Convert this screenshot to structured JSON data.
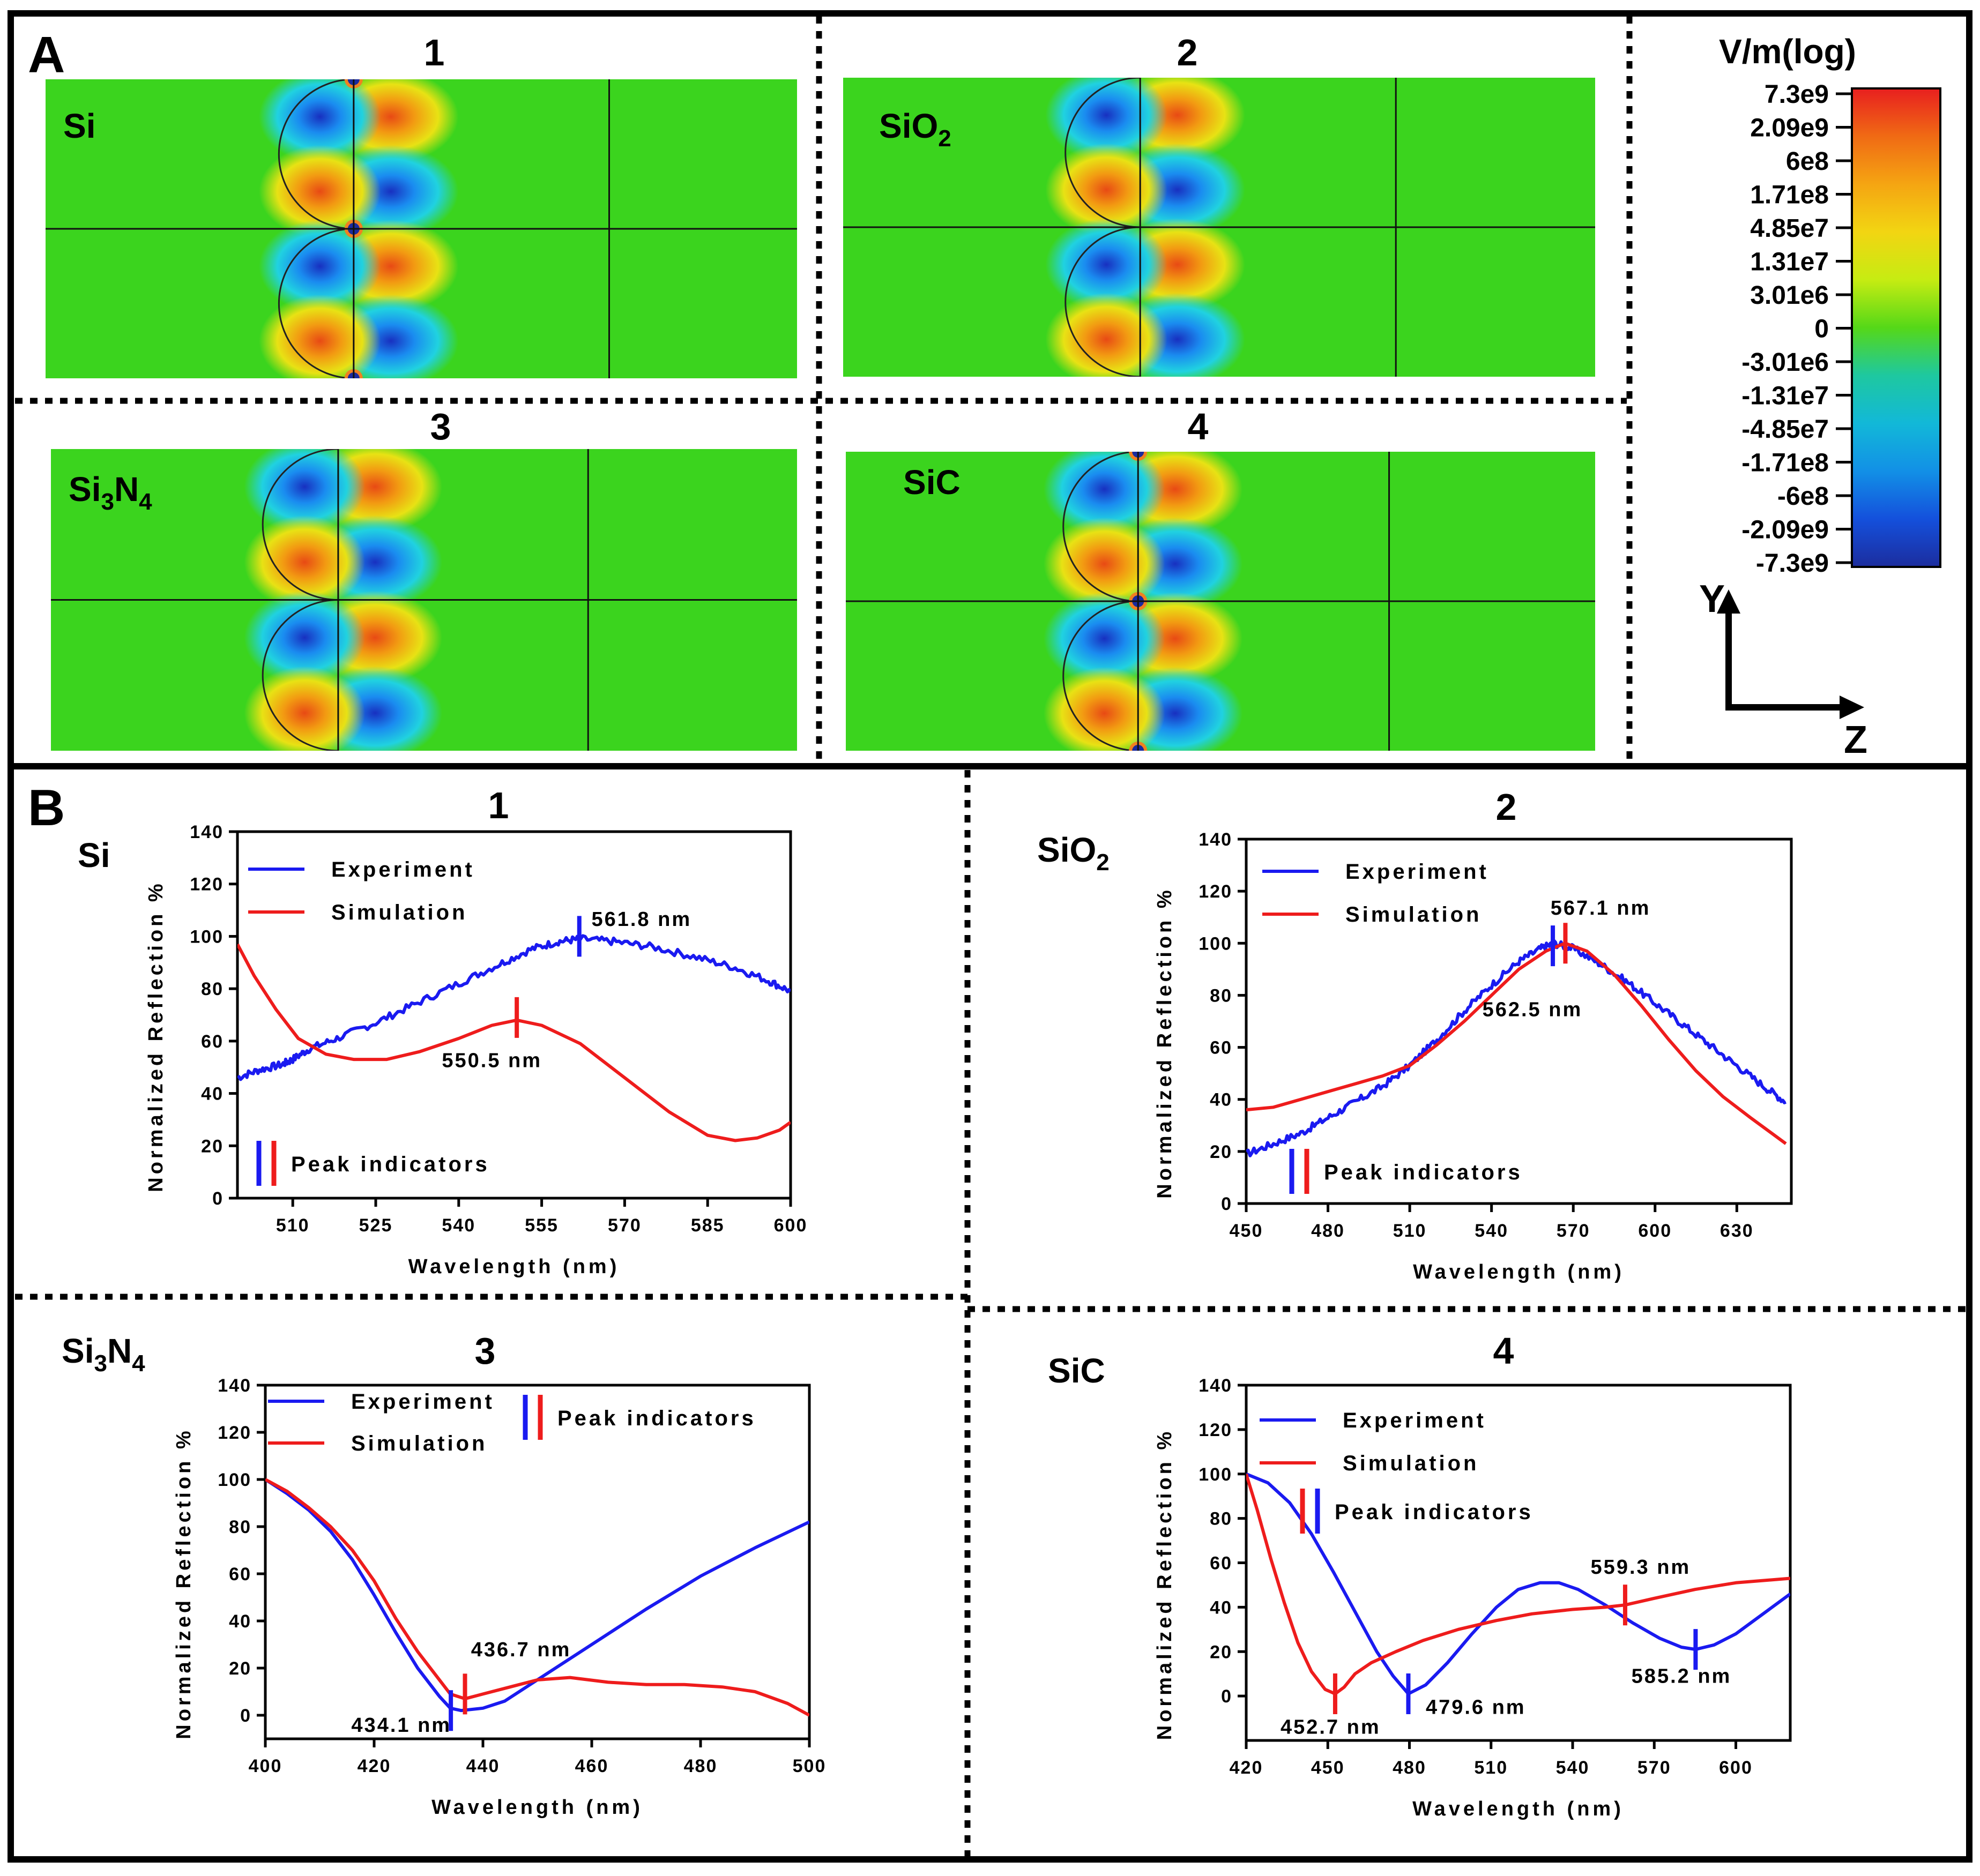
{
  "section_a_label": "A",
  "section_b_label": "B",
  "field_maps": [
    {
      "num": "1",
      "material": "Si",
      "orient": 1,
      "tight": true
    },
    {
      "num": "2",
      "material": "SiO",
      "sub": "2",
      "orient": 1,
      "tight": false
    },
    {
      "num": "3",
      "material": "Si",
      "sub": "3",
      "material_b": "N",
      "sub_b": "4",
      "orient": 1,
      "tight": false
    },
    {
      "num": "4",
      "material": "SiC",
      "orient": 1,
      "tight": true
    }
  ],
  "colorbar": {
    "title": "V/m(log)",
    "ticks": [
      "7.3e9",
      "2.09e9",
      "6e8",
      "1.71e8",
      "4.85e7",
      "1.31e7",
      "3.01e6",
      "0",
      "-3.01e6",
      "-1.31e7",
      "-4.85e7",
      "-1.71e8",
      "-6e8",
      "-2.09e9",
      "-7.3e9"
    ],
    "colors": [
      "#e81f1f",
      "#f06a14",
      "#f5a512",
      "#f2d512",
      "#c6ec12",
      "#7fe015",
      "#23c81e",
      "#1ec8a0",
      "#12b8d8",
      "#1290e6",
      "#1450dc",
      "#1c2d9e"
    ]
  },
  "axes_labels": {
    "y": "Y",
    "z": "Z"
  },
  "colors": {
    "experiment": "#1a1af0",
    "simulation": "#ee1c1c",
    "experiment_label": "#4a4ae6",
    "simulation_label": "#e83b3b",
    "field": "#3bd41e"
  },
  "chart_data": [
    {
      "num": "1",
      "material": "Si",
      "type": "line",
      "xlabel": "Wavelength (nm)",
      "ylabel": "Normalized Reflection %",
      "xlim": [
        500,
        600
      ],
      "ylim": [
        0,
        140
      ],
      "xticks": [
        "510",
        "525",
        "540",
        "555",
        "570",
        "585",
        "600"
      ],
      "xtick_values": [
        510,
        525,
        540,
        555,
        570,
        585,
        600
      ],
      "yticks": [
        "0",
        "20",
        "40",
        "60",
        "80",
        "100",
        "120",
        "140"
      ],
      "ytick_values": [
        0,
        20,
        40,
        60,
        80,
        100,
        120,
        140
      ],
      "legend": {
        "experiment": "Experiment",
        "simulation": "Simulation",
        "peak": "Peak indicators"
      },
      "series": [
        {
          "name": "Experiment",
          "color": "experiment",
          "noise": 1.4,
          "points": [
            [
              500,
              46
            ],
            [
              504,
              49
            ],
            [
              508,
              51
            ],
            [
              510,
              53
            ],
            [
              513,
              57
            ],
            [
              518,
              61
            ],
            [
              525,
              67
            ],
            [
              532,
              74
            ],
            [
              540,
              82
            ],
            [
              547,
              89
            ],
            [
              553,
              95
            ],
            [
              558,
              98
            ],
            [
              562,
              99
            ],
            [
              568,
              98
            ],
            [
              575,
              96
            ],
            [
              583,
              92
            ],
            [
              590,
              88
            ],
            [
              596,
              83
            ],
            [
              600,
              79
            ]
          ]
        },
        {
          "name": "Simulation",
          "color": "simulation",
          "noise": 0,
          "points": [
            [
              500,
              97
            ],
            [
              503,
              85
            ],
            [
              507,
              72
            ],
            [
              511,
              61
            ],
            [
              516,
              55
            ],
            [
              521,
              53
            ],
            [
              527,
              53
            ],
            [
              533,
              56
            ],
            [
              540,
              61
            ],
            [
              546,
              66
            ],
            [
              550.5,
              68
            ],
            [
              555,
              66
            ],
            [
              562,
              59
            ],
            [
              570,
              46
            ],
            [
              578,
              33
            ],
            [
              585,
              24
            ],
            [
              590,
              22
            ],
            [
              594,
              23
            ],
            [
              598,
              26
            ],
            [
              600,
              29
            ]
          ]
        }
      ],
      "peaks": [
        {
          "x": 561.8,
          "y": 100,
          "color": "experiment",
          "label": "561.8 nm",
          "lx": 564,
          "ly": 104,
          "anchor": "start"
        },
        {
          "x": 550.5,
          "y": 69,
          "color": "simulation",
          "label": "550.5 nm",
          "lx": 546,
          "ly": 50,
          "anchor": "middle"
        }
      ]
    },
    {
      "num": "2",
      "material": "SiO",
      "sub": "2",
      "type": "line",
      "xlabel": "Wavelength (nm)",
      "ylabel": "Normalized Reflection %",
      "xlim": [
        450,
        650
      ],
      "ylim": [
        0,
        140
      ],
      "xticks": [
        "450",
        "480",
        "510",
        "540",
        "570",
        "600",
        "630"
      ],
      "xtick_values": [
        450,
        480,
        510,
        540,
        570,
        600,
        630
      ],
      "yticks": [
        "0",
        "20",
        "40",
        "60",
        "80",
        "100",
        "120",
        "140"
      ],
      "ytick_values": [
        0,
        20,
        40,
        60,
        80,
        100,
        120,
        140
      ],
      "legend": {
        "experiment": "Experiment",
        "simulation": "Simulation",
        "peak": "Peak indicators"
      },
      "series": [
        {
          "name": "Experiment",
          "color": "experiment",
          "noise": 1.4,
          "points": [
            [
              450,
              19
            ],
            [
              460,
              23
            ],
            [
              470,
              27
            ],
            [
              480,
              33
            ],
            [
              490,
              39
            ],
            [
              500,
              45
            ],
            [
              510,
              53
            ],
            [
              520,
              63
            ],
            [
              530,
              74
            ],
            [
              540,
              84
            ],
            [
              550,
              93
            ],
            [
              558,
              98
            ],
            [
              563,
              100
            ],
            [
              570,
              98
            ],
            [
              580,
              92
            ],
            [
              590,
              85
            ],
            [
              600,
              77
            ],
            [
              610,
              69
            ],
            [
              620,
              61
            ],
            [
              630,
              53
            ],
            [
              640,
              45
            ],
            [
              648,
              39
            ]
          ]
        },
        {
          "name": "Simulation",
          "color": "simulation",
          "noise": 0,
          "points": [
            [
              450,
              36
            ],
            [
              460,
              37
            ],
            [
              470,
              40
            ],
            [
              480,
              43
            ],
            [
              490,
              46
            ],
            [
              500,
              49
            ],
            [
              510,
              53
            ],
            [
              520,
              61
            ],
            [
              530,
              70
            ],
            [
              540,
              80
            ],
            [
              550,
              90
            ],
            [
              560,
              97
            ],
            [
              567,
              100
            ],
            [
              575,
              97
            ],
            [
              585,
              88
            ],
            [
              595,
              76
            ],
            [
              605,
              63
            ],
            [
              615,
              51
            ],
            [
              625,
              41
            ],
            [
              635,
              33
            ],
            [
              648,
              23
            ]
          ]
        }
      ],
      "peaks": [
        {
          "x": 562.5,
          "y": 99,
          "color": "experiment",
          "label": "562.5 nm",
          "lx": 555,
          "ly": 72,
          "anchor": "middle"
        },
        {
          "x": 567.1,
          "y": 100,
          "color": "simulation",
          "label": "567.1 nm",
          "lx": 580,
          "ly": 111,
          "anchor": "middle"
        }
      ]
    },
    {
      "num": "3",
      "material": "Si",
      "sub": "3",
      "material_b": "N",
      "sub_b": "4",
      "type": "line",
      "xlabel": "Wavelength (nm)",
      "ylabel": "Normalized Reflection %",
      "xlim": [
        400,
        500
      ],
      "ylim": [
        -10,
        140
      ],
      "xticks": [
        "400",
        "420",
        "440",
        "460",
        "480",
        "500"
      ],
      "xtick_values": [
        400,
        420,
        440,
        460,
        480,
        500
      ],
      "yticks": [
        "0",
        "20",
        "40",
        "60",
        "80",
        "100",
        "120",
        "140"
      ],
      "ytick_values": [
        0,
        20,
        40,
        60,
        80,
        100,
        120,
        140
      ],
      "legend": {
        "experiment": "Experiment",
        "simulation": "Simulation",
        "peak": "Peak indicators"
      },
      "series": [
        {
          "name": "Experiment",
          "color": "experiment",
          "noise": 0,
          "points": [
            [
              400,
              100
            ],
            [
              404,
              94
            ],
            [
              408,
              87
            ],
            [
              412,
              78
            ],
            [
              416,
              66
            ],
            [
              420,
              51
            ],
            [
              424,
              35
            ],
            [
              428,
              20
            ],
            [
              432,
              8
            ],
            [
              434,
              3
            ],
            [
              436,
              2
            ],
            [
              440,
              3
            ],
            [
              444,
              6
            ],
            [
              450,
              15
            ],
            [
              460,
              30
            ],
            [
              470,
              45
            ],
            [
              480,
              59
            ],
            [
              490,
              71
            ],
            [
              500,
              82
            ]
          ]
        },
        {
          "name": "Simulation",
          "color": "simulation",
          "noise": 0,
          "points": [
            [
              400,
              100
            ],
            [
              404,
              95
            ],
            [
              408,
              88
            ],
            [
              412,
              80
            ],
            [
              416,
              70
            ],
            [
              420,
              57
            ],
            [
              424,
              41
            ],
            [
              428,
              27
            ],
            [
              432,
              15
            ],
            [
              434,
              9
            ],
            [
              436.7,
              7
            ],
            [
              440,
              9
            ],
            [
              445,
              12
            ],
            [
              450,
              15
            ],
            [
              456,
              16
            ],
            [
              463,
              14
            ],
            [
              470,
              13
            ],
            [
              477,
              13
            ],
            [
              484,
              12
            ],
            [
              490,
              10
            ],
            [
              496,
              5
            ],
            [
              500,
              0
            ]
          ]
        }
      ],
      "peaks": [
        {
          "x": 434.1,
          "y": 2,
          "color": "experiment",
          "label": "434.1 nm",
          "lx": 425,
          "ly": -7,
          "anchor": "middle"
        },
        {
          "x": 436.7,
          "y": 9,
          "color": "simulation",
          "label": "436.7 nm",
          "lx": 447,
          "ly": 25,
          "anchor": "middle"
        }
      ]
    },
    {
      "num": "4",
      "material": "SiC",
      "type": "line",
      "xlabel": "Wavelength (nm)",
      "ylabel": "Normalized Reflection %",
      "xlim": [
        420,
        620
      ],
      "ylim": [
        -20,
        140
      ],
      "xticks": [
        "420",
        "450",
        "480",
        "510",
        "540",
        "570",
        "600"
      ],
      "xtick_values": [
        420,
        450,
        480,
        510,
        540,
        570,
        600
      ],
      "yticks": [
        "0",
        "20",
        "40",
        "60",
        "80",
        "100",
        "120",
        "140"
      ],
      "ytick_values": [
        0,
        20,
        40,
        60,
        80,
        100,
        120,
        140
      ],
      "legend": {
        "experiment": "Experiment",
        "simulation": "Simulation",
        "peak": "Peak indicators"
      },
      "series": [
        {
          "name": "Experiment",
          "color": "experiment",
          "noise": 0,
          "points": [
            [
              420,
              100
            ],
            [
              428,
              96
            ],
            [
              436,
              87
            ],
            [
              444,
              73
            ],
            [
              452,
              56
            ],
            [
              460,
              38
            ],
            [
              468,
              20
            ],
            [
              474,
              9
            ],
            [
              479.6,
              1
            ],
            [
              486,
              5
            ],
            [
              494,
              15
            ],
            [
              503,
              28
            ],
            [
              512,
              40
            ],
            [
              520,
              48
            ],
            [
              528,
              51
            ],
            [
              535,
              51
            ],
            [
              542,
              48
            ],
            [
              552,
              41
            ],
            [
              562,
              33
            ],
            [
              572,
              26
            ],
            [
              580,
              22
            ],
            [
              585.2,
              21
            ],
            [
              592,
              23
            ],
            [
              600,
              28
            ],
            [
              610,
              37
            ],
            [
              620,
              46
            ]
          ]
        },
        {
          "name": "Simulation",
          "color": "simulation",
          "noise": 0,
          "points": [
            [
              420,
              100
            ],
            [
              424,
              84
            ],
            [
              429,
              62
            ],
            [
              434,
              42
            ],
            [
              439,
              24
            ],
            [
              444,
              11
            ],
            [
              449,
              3
            ],
            [
              452.7,
              1
            ],
            [
              456,
              4
            ],
            [
              460,
              10
            ],
            [
              466,
              15
            ],
            [
              475,
              20
            ],
            [
              485,
              25
            ],
            [
              498,
              30
            ],
            [
              512,
              34
            ],
            [
              525,
              37
            ],
            [
              540,
              39
            ],
            [
              552,
              40
            ],
            [
              559.3,
              41
            ],
            [
              570,
              44
            ],
            [
              585,
              48
            ],
            [
              600,
              51
            ],
            [
              620,
              53
            ]
          ]
        }
      ],
      "peaks": [
        {
          "x": 452.7,
          "y": 1,
          "color": "simulation",
          "label": "452.7 nm",
          "lx": 451,
          "ly": -17,
          "anchor": "middle"
        },
        {
          "x": 479.6,
          "y": 1,
          "color": "experiment",
          "label": "479.6 nm",
          "lx": 486,
          "ly": -8,
          "anchor": "start"
        },
        {
          "x": 559.3,
          "y": 41,
          "color": "simulation",
          "label": "559.3 nm",
          "lx": 565,
          "ly": 55,
          "anchor": "middle"
        },
        {
          "x": 585.2,
          "y": 21,
          "color": "experiment",
          "label": "585.2 nm",
          "lx": 580,
          "ly": 6,
          "anchor": "middle"
        }
      ]
    }
  ]
}
